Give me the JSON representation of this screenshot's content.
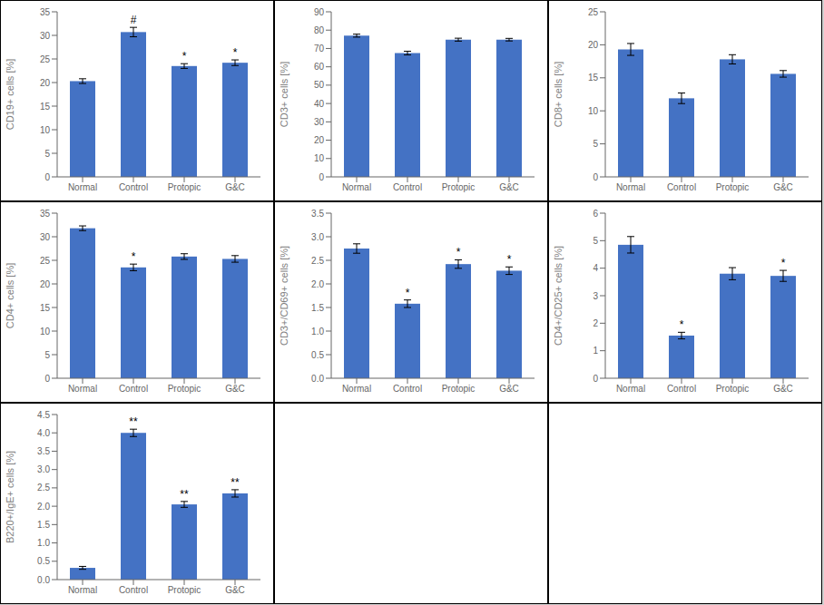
{
  "chart_data": [
    {
      "type": "bar",
      "ylabel": "CD19+ cells [%]",
      "categories": [
        "Normal",
        "Control",
        "Protopic",
        "G&C"
      ],
      "values": [
        20.3,
        30.7,
        23.5,
        24.2
      ],
      "errors": [
        0.5,
        1.0,
        0.5,
        0.6
      ],
      "ylim": [
        0,
        35
      ],
      "yticks": [
        0,
        5,
        10,
        15,
        20,
        25,
        30,
        35
      ],
      "annotations": [
        {
          "category": "Control",
          "text": "#"
        },
        {
          "category": "Protopic",
          "text": "*"
        },
        {
          "category": "G&C",
          "text": "*"
        }
      ],
      "color": "#4472C4",
      "grid": false
    },
    {
      "type": "bar",
      "ylabel": "CD3+ cells [%]",
      "categories": [
        "Normal",
        "Control",
        "Protopic",
        "G&C"
      ],
      "values": [
        77.0,
        67.5,
        74.8,
        74.8
      ],
      "errors": [
        0.8,
        1.0,
        0.8,
        0.7
      ],
      "ylim": [
        0,
        90
      ],
      "yticks": [
        0,
        10,
        20,
        30,
        40,
        50,
        60,
        70,
        80,
        90
      ],
      "color": "#4472C4",
      "grid": false
    },
    {
      "type": "bar",
      "ylabel": "CD8+ cells [%]",
      "categories": [
        "Normal",
        "Control",
        "Protopic",
        "G&C"
      ],
      "values": [
        19.3,
        11.9,
        17.8,
        15.6
      ],
      "errors": [
        0.9,
        0.8,
        0.7,
        0.5
      ],
      "ylim": [
        0,
        25
      ],
      "yticks": [
        0,
        5,
        10,
        15,
        20,
        25
      ],
      "color": "#4472C4",
      "grid": false
    },
    {
      "type": "bar",
      "ylabel": "CD4+ cells [%]",
      "categories": [
        "Normal",
        "Control",
        "Protopic",
        "G&C"
      ],
      "values": [
        31.8,
        23.5,
        25.8,
        25.3
      ],
      "errors": [
        0.5,
        0.7,
        0.6,
        0.7
      ],
      "ylim": [
        0,
        35
      ],
      "yticks": [
        0,
        5,
        10,
        15,
        20,
        25,
        30,
        35
      ],
      "annotations": [
        {
          "category": "Control",
          "text": "*"
        }
      ],
      "color": "#4472C4",
      "grid": false
    },
    {
      "type": "bar",
      "ylabel": "CD3+/CD69+ cells [%]",
      "categories": [
        "Normal",
        "Control",
        "Protopic",
        "G&C"
      ],
      "values": [
        2.75,
        1.58,
        2.42,
        2.28
      ],
      "errors": [
        0.1,
        0.08,
        0.09,
        0.08
      ],
      "ylim": [
        0,
        3.5
      ],
      "yticks": [
        {
          "value": 0,
          "label": "0.0"
        },
        0.5,
        {
          "value": 1.0,
          "label": "1.0"
        },
        1.5,
        {
          "value": 2.0,
          "label": "2.0"
        },
        2.5,
        {
          "value": 3.0,
          "label": "3.0"
        },
        3.5
      ],
      "annotations": [
        {
          "category": "Control",
          "text": "*"
        },
        {
          "category": "Protopic",
          "text": "*"
        },
        {
          "category": "G&C",
          "text": "*"
        }
      ],
      "color": "#4472C4",
      "grid": false
    },
    {
      "type": "bar",
      "ylabel": "CD4+/CD25+ cells [%]",
      "categories": [
        "Normal",
        "Control",
        "Protopic",
        "G&C"
      ],
      "values": [
        4.85,
        1.55,
        3.8,
        3.72
      ],
      "errors": [
        0.3,
        0.12,
        0.22,
        0.2
      ],
      "ylim": [
        0,
        6
      ],
      "yticks": [
        0,
        1,
        2,
        3,
        4,
        5,
        6
      ],
      "annotations": [
        {
          "category": "Control",
          "text": "*"
        },
        {
          "category": "G&C",
          "text": "*"
        }
      ],
      "color": "#4472C4",
      "grid": false
    },
    {
      "type": "bar",
      "ylabel": "B220+/IgE+ cells [%]",
      "categories": [
        "Normal",
        "Control",
        "Protopic",
        "G&C"
      ],
      "values": [
        0.32,
        4.0,
        2.05,
        2.35
      ],
      "errors": [
        0.04,
        0.1,
        0.08,
        0.1
      ],
      "ylim": [
        0,
        4.5
      ],
      "yticks": [
        {
          "value": 0,
          "label": "0.0"
        },
        0.5,
        {
          "value": 1.0,
          "label": "1.0"
        },
        1.5,
        {
          "value": 2.0,
          "label": "2.0"
        },
        2.5,
        {
          "value": 3.0,
          "label": "3.0"
        },
        3.5,
        {
          "value": 4.0,
          "label": "4.0"
        },
        4.5
      ],
      "annotations": [
        {
          "category": "Control",
          "text": "**"
        },
        {
          "category": "Protopic",
          "text": "**"
        },
        {
          "category": "G&C",
          "text": "**"
        }
      ],
      "color": "#4472C4",
      "grid": false
    }
  ]
}
